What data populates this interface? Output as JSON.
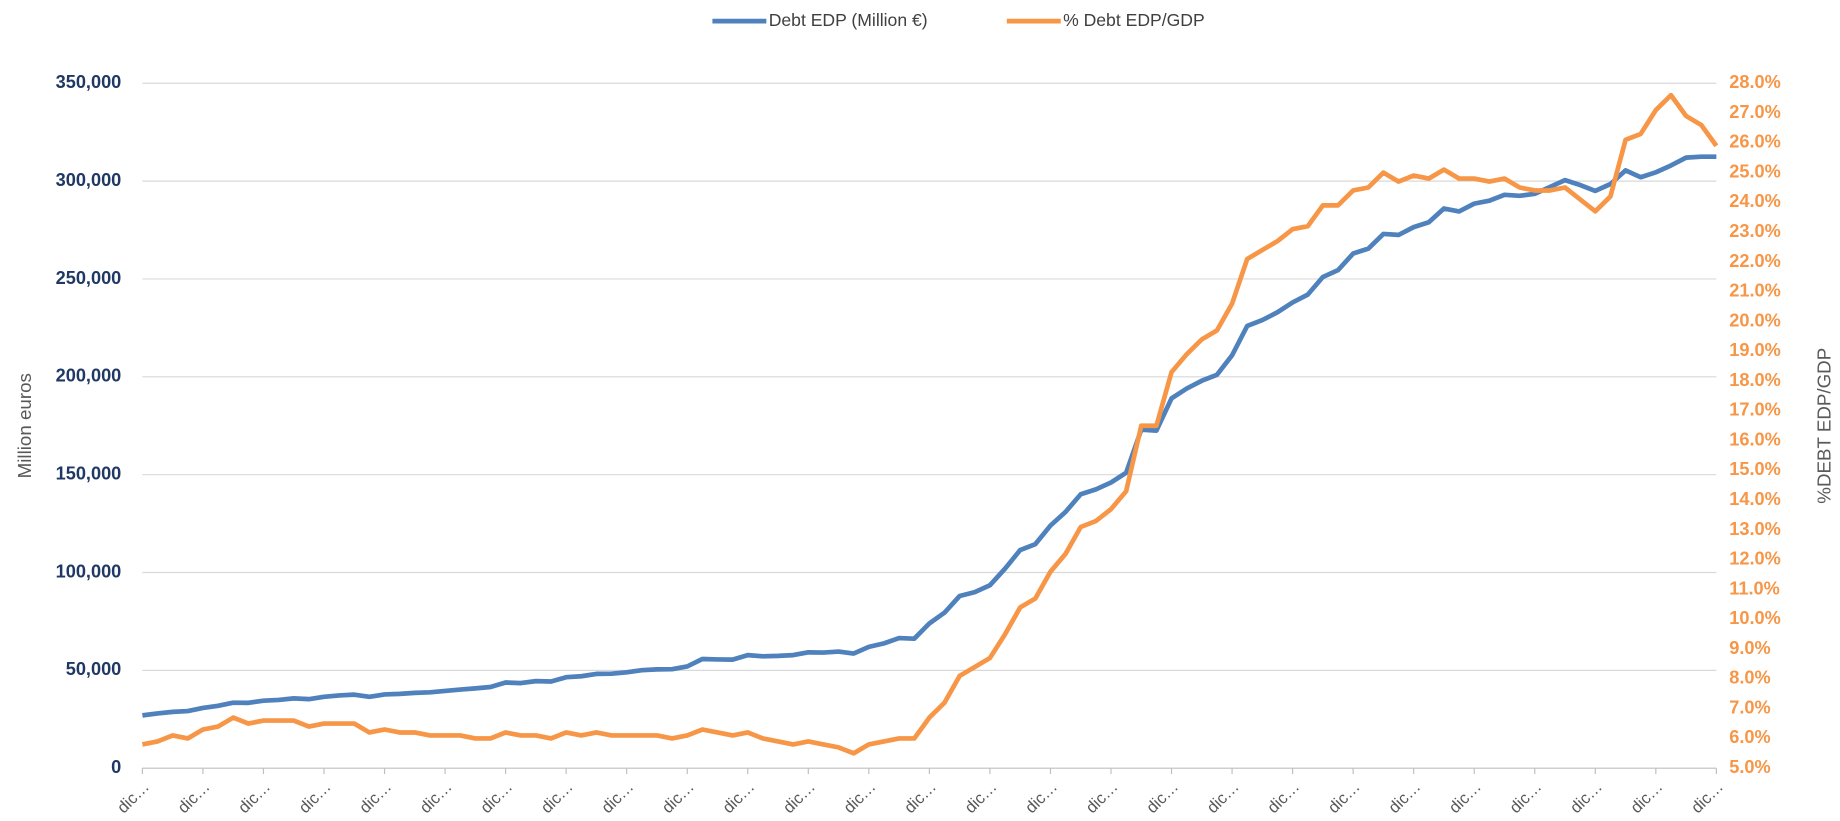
{
  "chart_data": {
    "type": "line",
    "categories": [
      "dic…",
      null,
      null,
      null,
      "dic…",
      null,
      null,
      null,
      "dic…",
      null,
      null,
      null,
      "dic…",
      null,
      null,
      null,
      "dic…",
      null,
      null,
      null,
      "dic…",
      null,
      null,
      null,
      "dic…",
      null,
      null,
      null,
      "dic…",
      null,
      null,
      null,
      "dic…",
      null,
      null,
      null,
      "dic…",
      null,
      null,
      null,
      "dic…",
      null,
      null,
      null,
      "dic…",
      null,
      null,
      null,
      "dic…",
      null,
      null,
      null,
      "dic…",
      null,
      null,
      null,
      "dic…",
      null,
      null,
      null,
      "dic…",
      null,
      null,
      null,
      "dic…",
      null,
      null,
      null,
      "dic…",
      null,
      null,
      null,
      "dic…",
      null,
      null,
      null,
      "dic…",
      null,
      null,
      null,
      "dic…",
      null,
      null,
      null,
      "dic…",
      null,
      null,
      null,
      "dic…",
      null,
      null,
      null,
      "dic…",
      null,
      null,
      null,
      "dic…",
      null,
      null,
      null,
      "dic…",
      null,
      null,
      null,
      "dic…"
    ],
    "y_label": "Million euros",
    "y2_label": "%DEBT EDP/GDP",
    "ylim": [
      0,
      350000
    ],
    "yticks": [
      0,
      {
        "value": 50000,
        "label": "50,000"
      },
      {
        "value": 100000,
        "label": "100,000"
      },
      {
        "value": 150000,
        "label": "150,000"
      },
      {
        "value": 200000,
        "label": "200,000"
      },
      {
        "value": 250000,
        "label": "250,000"
      },
      {
        "value": 300000,
        "label": "300,000"
      },
      {
        "value": 350000,
        "label": "350,000"
      }
    ],
    "y2lim": [
      5,
      28
    ],
    "y2ticks": [
      {
        "value": 5,
        "label": "5.0%"
      },
      {
        "value": 6,
        "label": "6.0%"
      },
      {
        "value": 7,
        "label": "7.0%"
      },
      {
        "value": 8,
        "label": "8.0%"
      },
      {
        "value": 9,
        "label": "9.0%"
      },
      {
        "value": 10,
        "label": "10.0%"
      },
      {
        "value": 11,
        "label": "11.0%"
      },
      {
        "value": 12,
        "label": "12.0%"
      },
      {
        "value": 13,
        "label": "13.0%"
      },
      {
        "value": 14,
        "label": "14.0%"
      },
      {
        "value": 15,
        "label": "15.0%"
      },
      {
        "value": 16,
        "label": "16.0%"
      },
      {
        "value": 17,
        "label": "17.0%"
      },
      {
        "value": 18,
        "label": "18.0%"
      },
      {
        "value": 19,
        "label": "19.0%"
      },
      {
        "value": 20,
        "label": "20.0%"
      },
      {
        "value": 21,
        "label": "21.0%"
      },
      {
        "value": 22,
        "label": "22.0%"
      },
      {
        "value": 23,
        "label": "23.0%"
      },
      {
        "value": 24,
        "label": "24.0%"
      },
      {
        "value": 25,
        "label": "25.0%"
      },
      {
        "value": 26,
        "label": "26.0%"
      },
      {
        "value": 27,
        "label": "27.0%"
      },
      {
        "value": 28,
        "label": "28.0%"
      }
    ],
    "grid": true,
    "legend": "top",
    "series": [
      {
        "name": "Debt EDP (Million €)",
        "color": "#4f81bd",
        "values": [
          27000,
          28000,
          28800,
          29200,
          30800,
          31900,
          33500,
          33400,
          34500,
          34900,
          35700,
          35300,
          36500,
          37200,
          37600,
          36500,
          37700,
          38000,
          38500,
          38800,
          39500,
          40200,
          40800,
          41500,
          43800,
          43500,
          44500,
          44300,
          46500,
          47000,
          48200,
          48300,
          49000,
          50100,
          50500,
          50600,
          52000,
          55800,
          55600,
          55500,
          57800,
          57200,
          57400,
          57800,
          59200,
          59100,
          59600,
          58600,
          62000,
          63800,
          66500,
          66200,
          74000,
          79500,
          88000,
          90000,
          93500,
          102000,
          111500,
          114500,
          124000,
          131000,
          140000,
          142500,
          146000,
          151000,
          173000,
          172500,
          189000,
          194000,
          198000,
          201000,
          211000,
          226000,
          229000,
          233000,
          238000,
          242000,
          251000,
          254500,
          263000,
          265500,
          273000,
          272500,
          276500,
          279000,
          286000,
          284500,
          288500,
          290000,
          293000,
          292500,
          293500,
          297000,
          300500,
          298000,
          295000,
          298500,
          305500,
          302000,
          304500,
          308000,
          312000,
          312500,
          312500
        ]
      },
      {
        "name": "% Debt EDP/GDP",
        "color": "#f79646",
        "axis": "y2",
        "values": [
          5.8,
          5.9,
          6.1,
          6.0,
          6.3,
          6.4,
          6.7,
          6.5,
          6.6,
          6.6,
          6.6,
          6.4,
          6.5,
          6.5,
          6.5,
          6.2,
          6.3,
          6.2,
          6.2,
          6.1,
          6.1,
          6.1,
          6.0,
          6.0,
          6.2,
          6.1,
          6.1,
          6.0,
          6.2,
          6.1,
          6.2,
          6.1,
          6.1,
          6.1,
          6.1,
          6.0,
          6.1,
          6.3,
          6.2,
          6.1,
          6.2,
          6.0,
          5.9,
          5.8,
          5.9,
          5.8,
          5.7,
          5.5,
          5.8,
          5.9,
          6.0,
          6.0,
          6.7,
          7.2,
          8.1,
          8.4,
          8.7,
          9.5,
          10.4,
          10.7,
          11.6,
          12.2,
          13.1,
          13.3,
          13.7,
          14.3,
          16.5,
          16.5,
          18.3,
          18.9,
          19.4,
          19.7,
          20.6,
          22.1,
          22.4,
          22.7,
          23.1,
          23.2,
          23.9,
          23.9,
          24.4,
          24.5,
          25.0,
          24.7,
          24.9,
          24.8,
          25.1,
          24.8,
          24.8,
          24.7,
          24.8,
          24.5,
          24.4,
          24.4,
          24.5,
          24.1,
          23.7,
          24.2,
          26.1,
          26.3,
          27.1,
          27.6,
          26.9,
          26.6,
          25.9
        ]
      }
    ]
  }
}
